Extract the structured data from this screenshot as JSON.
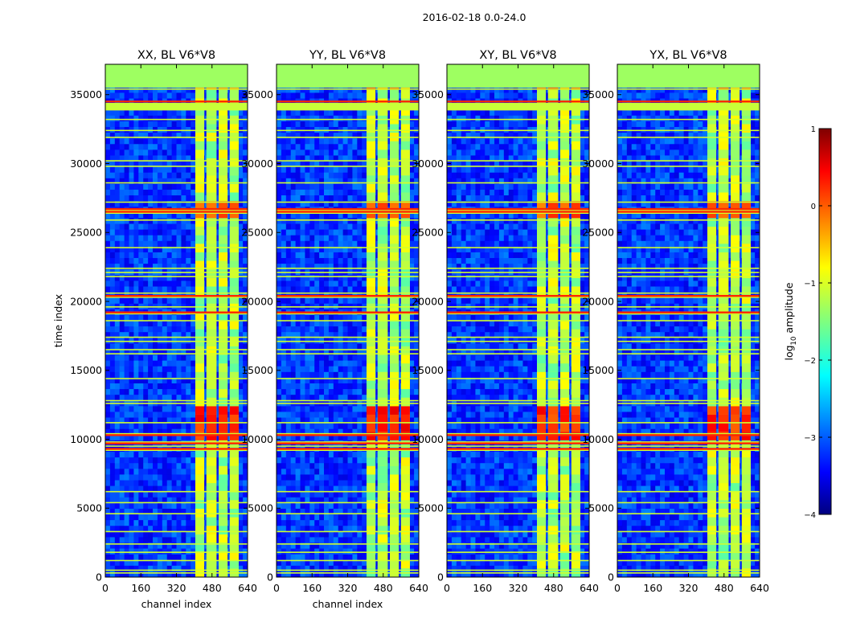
{
  "figure": {
    "suptitle": "2016-02-18 0.0-24.0"
  },
  "chart_data": [
    {
      "type": "heatmap",
      "title": "XX, BL V6*V8",
      "xlabel": "channel index",
      "ylabel": "time index",
      "xlim": [
        0,
        640
      ],
      "ylim": [
        0,
        37200
      ],
      "xticks": [
        "0",
        "160",
        "320",
        "480",
        "640"
      ],
      "yticks": [
        "0",
        "5000",
        "10000",
        "15000",
        "20000",
        "25000",
        "30000",
        "35000"
      ]
    },
    {
      "type": "heatmap",
      "title": "YY, BL V6*V8",
      "xlabel": "channel index",
      "ylabel": "",
      "xlim": [
        0,
        640
      ],
      "ylim": [
        0,
        37200
      ],
      "xticks": [
        "0",
        "160",
        "320",
        "480",
        "640"
      ],
      "yticks": [
        "0",
        "5000",
        "10000",
        "15000",
        "20000",
        "25000",
        "30000",
        "35000"
      ]
    },
    {
      "type": "heatmap",
      "title": "XY, BL V6*V8",
      "xlabel": "",
      "ylabel": "",
      "xlim": [
        0,
        640
      ],
      "ylim": [
        0,
        37200
      ],
      "xticks": [
        "0",
        "160",
        "320",
        "480",
        "640"
      ],
      "yticks": [
        "0",
        "5000",
        "10000",
        "15000",
        "20000",
        "25000",
        "30000",
        "35000"
      ]
    },
    {
      "type": "heatmap",
      "title": "YX, BL V6*V8",
      "xlabel": "",
      "ylabel": "",
      "xlim": [
        0,
        640
      ],
      "ylim": [
        0,
        37200
      ],
      "xticks": [
        "0",
        "160",
        "320",
        "480",
        "640"
      ],
      "yticks": [
        "0",
        "5000",
        "10000",
        "15000",
        "20000",
        "25000",
        "30000",
        "35000"
      ]
    }
  ],
  "colorbar": {
    "label": "log10 amplitude",
    "label_main": "log",
    "label_sub": "10",
    "label_rest": " amplitude",
    "range": [
      -4,
      1
    ],
    "ticks": [
      "1",
      "0",
      "−1",
      "−2",
      "−3",
      "−4"
    ],
    "colormap": "jet",
    "colors": [
      "#00007f",
      "#0000ff",
      "#007fff",
      "#00ffff",
      "#7fff7f",
      "#ffff00",
      "#ff7f00",
      "#ff0000",
      "#7f0000"
    ]
  },
  "structure": {
    "bright_channel_bands": [
      [
        405,
        445
      ],
      [
        455,
        500
      ],
      [
        510,
        550
      ],
      [
        560,
        600
      ]
    ],
    "horizontal_flag_rows": [
      300,
      500,
      1200,
      1800,
      2400,
      3300,
      4600,
      5400,
      6200,
      9200,
      9500,
      9800,
      10400,
      11200,
      12600,
      12800,
      14400,
      16200,
      16500,
      17100,
      17400,
      18600,
      19100,
      19600,
      20300,
      20600,
      21800,
      22100,
      22400,
      23900,
      25900,
      26400,
      26600,
      27200,
      28600,
      29800,
      30200,
      31900,
      32400,
      33200,
      33900,
      35400
    ],
    "strong_flag_rows": [
      9300,
      9700,
      10300,
      19200,
      20400,
      26500,
      26700,
      34300,
      34500
    ],
    "top_band_rows": [
      35500,
      37200
    ]
  }
}
